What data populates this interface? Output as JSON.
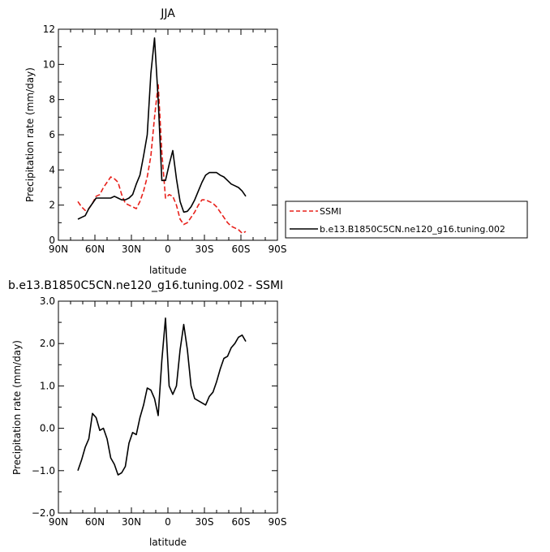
{
  "chart_data": [
    {
      "type": "line",
      "title": "JJA",
      "xlabel": "latitude",
      "ylabel": "Precipitation rate (mm/day)",
      "xlim": [
        90,
        -90
      ],
      "ylim": [
        0,
        12
      ],
      "x_ticks": [
        90,
        60,
        30,
        0,
        -30,
        -60,
        -90
      ],
      "x_tick_labels": [
        "90N",
        "60N",
        "30N",
        "0",
        "30S",
        "60S",
        "90S"
      ],
      "y_ticks": [
        0,
        2,
        4,
        6,
        8,
        10,
        12
      ],
      "y_tick_labels": [
        "0",
        "2",
        "4",
        "6",
        "8",
        "10",
        "12"
      ],
      "legend": "right",
      "series": [
        {
          "name": "SSMI",
          "color": "#e8201a",
          "dash": "dashed",
          "x": [
            74,
            71,
            68,
            65,
            62,
            59,
            56,
            53,
            50,
            47,
            44,
            41,
            38,
            35,
            32,
            29,
            26,
            23,
            20,
            17,
            14,
            11,
            8,
            5,
            2,
            -1,
            -4,
            -7,
            -10,
            -13,
            -16,
            -19,
            -22,
            -25,
            -28,
            -31,
            -34,
            -37,
            -40,
            -43,
            -46,
            -49,
            -52,
            -55,
            -58,
            -61,
            -64
          ],
          "values": [
            2.2,
            1.9,
            1.7,
            1.8,
            2.1,
            2.5,
            2.6,
            3.0,
            3.3,
            3.6,
            3.5,
            3.3,
            2.6,
            2.1,
            2.0,
            1.9,
            1.8,
            2.2,
            2.8,
            3.6,
            4.8,
            7.0,
            8.9,
            5.0,
            2.4,
            2.6,
            2.5,
            2.0,
            1.2,
            0.9,
            1.0,
            1.3,
            1.6,
            2.0,
            2.3,
            2.3,
            2.2,
            2.1,
            1.9,
            1.6,
            1.3,
            1.0,
            0.8,
            0.7,
            0.6,
            0.4,
            0.5
          ]
        },
        {
          "name": "b.e13.B1850C5CN.ne120_g16.tuning.002",
          "color": "#000000",
          "dash": "solid",
          "x": [
            74,
            71,
            68,
            65,
            62,
            59,
            56,
            53,
            50,
            47,
            44,
            41,
            38,
            35,
            32,
            29,
            26,
            23,
            20,
            17,
            14,
            11,
            8,
            5,
            2,
            -1,
            -4,
            -7,
            -10,
            -13,
            -16,
            -19,
            -22,
            -25,
            -28,
            -31,
            -34,
            -37,
            -40,
            -43,
            -46,
            -49,
            -52,
            -55,
            -58,
            -61,
            -64
          ],
          "values": [
            1.2,
            1.3,
            1.4,
            1.8,
            2.1,
            2.4,
            2.4,
            2.4,
            2.4,
            2.4,
            2.5,
            2.4,
            2.3,
            2.3,
            2.4,
            2.6,
            3.2,
            3.7,
            4.8,
            6.0,
            9.5,
            11.5,
            8.0,
            3.4,
            3.4,
            4.3,
            5.1,
            3.5,
            2.2,
            1.6,
            1.65,
            1.9,
            2.3,
            2.8,
            3.3,
            3.7,
            3.85,
            3.85,
            3.85,
            3.7,
            3.6,
            3.4,
            3.2,
            3.1,
            3.0,
            2.8,
            2.5
          ]
        }
      ]
    },
    {
      "type": "line",
      "title": "b.e13.B1850C5CN.ne120_g16.tuning.002 - SSMI",
      "xlabel": "latitude",
      "ylabel": "Precipitation rate (mm/day)",
      "xlim": [
        90,
        -90
      ],
      "ylim": [
        -2,
        3
      ],
      "x_ticks": [
        90,
        60,
        30,
        0,
        -30,
        -60,
        -90
      ],
      "x_tick_labels": [
        "90N",
        "60N",
        "30N",
        "0",
        "30S",
        "60S",
        "90S"
      ],
      "y_ticks": [
        -2,
        -1,
        0,
        1,
        2,
        3
      ],
      "y_tick_labels": [
        "−2.0",
        "−1.0",
        "0.0",
        "1.0",
        "2.0",
        "3.0"
      ],
      "series": [
        {
          "color": "#000000",
          "dash": "solid",
          "x": [
            74,
            71,
            68,
            65,
            62,
            59,
            56,
            53,
            50,
            47,
            44,
            41,
            38,
            35,
            32,
            29,
            26,
            23,
            20,
            17,
            14,
            11,
            8,
            5,
            2,
            -1,
            -4,
            -7,
            -10,
            -13,
            -16,
            -19,
            -22,
            -25,
            -28,
            -31,
            -34,
            -37,
            -40,
            -43,
            -46,
            -49,
            -52,
            -55,
            -58,
            -61,
            -64
          ],
          "values": [
            -1.0,
            -0.75,
            -0.45,
            -0.25,
            0.35,
            0.25,
            -0.05,
            0.0,
            -0.25,
            -0.7,
            -0.85,
            -1.1,
            -1.05,
            -0.9,
            -0.35,
            -0.1,
            -0.15,
            0.25,
            0.55,
            0.95,
            0.9,
            0.7,
            0.3,
            1.6,
            2.6,
            1.0,
            0.8,
            1.0,
            1.85,
            2.45,
            1.85,
            1.0,
            0.7,
            0.65,
            0.6,
            0.55,
            0.75,
            0.85,
            1.1,
            1.4,
            1.65,
            1.7,
            1.9,
            2.0,
            2.15,
            2.2,
            2.05
          ]
        }
      ]
    }
  ]
}
